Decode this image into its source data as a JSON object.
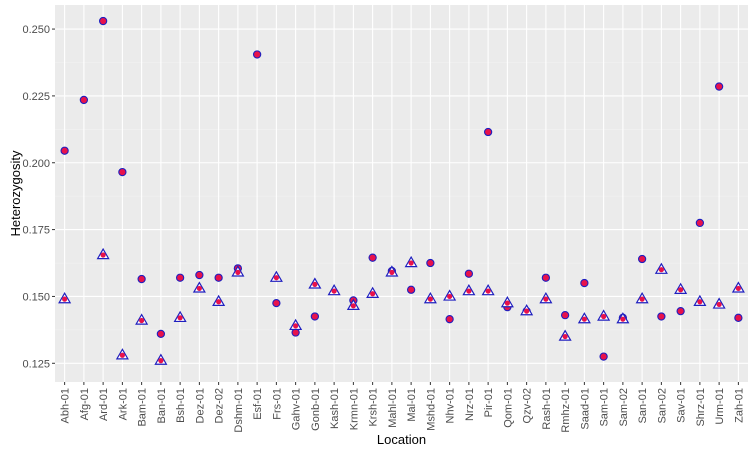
{
  "chart_data": {
    "type": "scatter",
    "title": "",
    "xlabel": "Location",
    "ylabel": "Heterozygosity",
    "ylim": [
      0.118,
      0.259
    ],
    "yticks": [
      0.125,
      0.15,
      0.175,
      0.2,
      0.225,
      0.25
    ],
    "ytick_labels": [
      "0.125",
      "0.150",
      "0.175",
      "0.200",
      "0.225",
      "0.250"
    ],
    "grid": true,
    "categories": [
      "Abh-01",
      "Afg-01",
      "Ard-01",
      "Ark-01",
      "Bam-01",
      "Ban-01",
      "Bsh-01",
      "Dez-01",
      "Dez-02",
      "Dshm-01",
      "Esf-01",
      "Frs-01",
      "Gahv-01",
      "Gonb-01",
      "Kash-01",
      "Krmn-01",
      "Krsh-01",
      "Mahl-01",
      "Mal-01",
      "Mshd-01",
      "Nhv-01",
      "Nrz-01",
      "Pir-01",
      "Qom-01",
      "Qzv-02",
      "Rash-01",
      "Rmhz-01",
      "Saad-01",
      "Sam-01",
      "Sam-02",
      "San-01",
      "San-02",
      "Sav-01",
      "Shrz-01",
      "Urm-01",
      "Zah-01"
    ],
    "series": [
      {
        "name": "circle",
        "marker": "circle",
        "values": [
          0.2045,
          0.2235,
          0.253,
          0.1965,
          0.1565,
          0.136,
          0.157,
          0.158,
          0.157,
          0.1605,
          0.2405,
          0.1475,
          0.1365,
          0.1425,
          null,
          0.1485,
          0.1645,
          0.1595,
          0.1525,
          0.1625,
          0.1415,
          0.1585,
          0.2115,
          0.146,
          0.1445,
          0.157,
          0.143,
          0.155,
          0.1275,
          0.142,
          0.164,
          0.1425,
          0.1445,
          0.1775,
          0.2285,
          0.142
        ]
      },
      {
        "name": "triangle",
        "marker": "triangle",
        "values": [
          0.149,
          null,
          0.1655,
          0.128,
          0.141,
          0.126,
          0.142,
          0.153,
          0.148,
          0.159,
          null,
          0.157,
          0.139,
          0.1545,
          0.152,
          0.1465,
          0.151,
          0.159,
          0.1625,
          0.149,
          0.15,
          0.152,
          0.152,
          0.1475,
          0.1445,
          0.149,
          0.135,
          0.1415,
          0.1425,
          0.1415,
          0.149,
          0.16,
          0.1525,
          0.148,
          0.147,
          0.153
        ]
      }
    ],
    "colors": {
      "panel_bg": "#ebebeb",
      "grid_major": "#ffffff",
      "grid_minor": "#f2f2f2",
      "marker_fill": "#e8124b",
      "marker_stroke": "#1f1fbf",
      "tick_color": "#333333"
    }
  }
}
